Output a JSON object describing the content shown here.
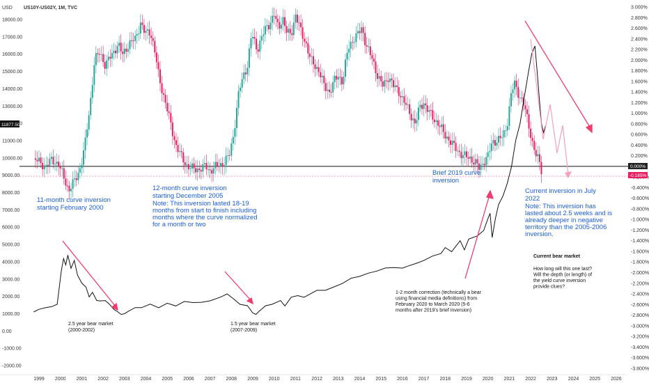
{
  "colors": {
    "up": "#26a69a",
    "down": "#e91e63",
    "price_line": "#111111",
    "annotation_blue": "#1a5fd6",
    "arrow": "#f23a6e",
    "projection": "#f7a1b8",
    "axis_text": "#333333"
  },
  "header": {
    "currency": "USD",
    "symbol": "US10Y-US02Y, 1M, TVC"
  },
  "chart_data": {
    "type": "line",
    "x_ticks": [
      "1999",
      "2000",
      "2001",
      "2002",
      "2003",
      "2004",
      "2005",
      "2006",
      "2007",
      "2008",
      "2009",
      "2010",
      "2011",
      "2012",
      "2013",
      "2014",
      "2015",
      "2016",
      "2017",
      "2018",
      "2019",
      "2020",
      "2021",
      "2022",
      "2023",
      "2024",
      "2025",
      "2026"
    ],
    "left_axis": {
      "label": "USD",
      "ticks": [
        "18000.00",
        "17000.00",
        "16000.00",
        "15000.00",
        "14000.00",
        "13000.00",
        "12000.00",
        "11000.00",
        "10000.00",
        "9000.00",
        "8000.00",
        "7000.00",
        "6000.00",
        "5000.00",
        "4000.00",
        "3000.00",
        "2000.00",
        "1000.00",
        "0.00",
        "-1000.00",
        "-2000.00"
      ]
    },
    "right_axis": {
      "ticks": [
        "3.000%",
        "2.800%",
        "2.600%",
        "2.400%",
        "2.200%",
        "2.000%",
        "1.800%",
        "1.600%",
        "1.400%",
        "1.200%",
        "1.000%",
        "0.800%",
        "0.600%",
        "0.400%",
        "0.200%",
        "0.000%",
        "-0.200%",
        "-0.400%",
        "-0.600%",
        "-0.800%",
        "-1.000%",
        "-1.200%",
        "-1.400%",
        "-1.600%",
        "-1.800%",
        "-2.000%",
        "-2.200%",
        "-2.400%",
        "-2.600%",
        "-2.800%",
        "-3.000%",
        "-3.200%",
        "-3.400%",
        "-3.600%",
        "-3.800%"
      ]
    },
    "price_badge": "11877.50",
    "zero_badge": "0.000%",
    "current_badge": "-0.185%",
    "series": [
      {
        "kind": "yield_curve_spread_candles",
        "close_points": [
          [
            1998.75,
            0.15
          ],
          [
            1999.0,
            0.08
          ],
          [
            1999.3,
            0.0
          ],
          [
            1999.6,
            0.12
          ],
          [
            1999.9,
            0.05
          ],
          [
            2000.1,
            -0.15
          ],
          [
            2000.4,
            -0.45
          ],
          [
            2000.7,
            -0.25
          ],
          [
            2000.95,
            0.0
          ],
          [
            2001.15,
            0.4
          ],
          [
            2001.4,
            1.2
          ],
          [
            2001.6,
            2.0
          ],
          [
            2001.85,
            2.15
          ],
          [
            2002.1,
            1.9
          ],
          [
            2002.4,
            2.1
          ],
          [
            2002.7,
            2.3
          ],
          [
            2002.9,
            2.1
          ],
          [
            2003.2,
            2.3
          ],
          [
            2003.5,
            2.4
          ],
          [
            2003.75,
            2.7
          ],
          [
            2003.95,
            2.5
          ],
          [
            2004.2,
            2.55
          ],
          [
            2004.4,
            2.2
          ],
          [
            2004.6,
            1.7
          ],
          [
            2004.85,
            1.3
          ],
          [
            2005.1,
            0.9
          ],
          [
            2005.4,
            0.4
          ],
          [
            2005.7,
            0.15
          ],
          [
            2005.95,
            0.0
          ],
          [
            2006.2,
            -0.05
          ],
          [
            2006.5,
            -0.05
          ],
          [
            2006.8,
            0.0
          ],
          [
            2007.0,
            -0.08
          ],
          [
            2007.3,
            0.0
          ],
          [
            2007.6,
            0.05
          ],
          [
            2007.9,
            0.2
          ],
          [
            2008.1,
            0.6
          ],
          [
            2008.35,
            1.4
          ],
          [
            2008.55,
            1.7
          ],
          [
            2008.75,
            1.9
          ],
          [
            2008.95,
            2.5
          ],
          [
            2009.2,
            2.2
          ],
          [
            2009.4,
            2.4
          ],
          [
            2009.6,
            2.6
          ],
          [
            2009.8,
            2.7
          ],
          [
            2010.0,
            2.85
          ],
          [
            2010.2,
            2.6
          ],
          [
            2010.4,
            2.8
          ],
          [
            2010.6,
            2.5
          ],
          [
            2010.8,
            2.5
          ],
          [
            2011.0,
            2.85
          ],
          [
            2011.2,
            2.6
          ],
          [
            2011.5,
            2.3
          ],
          [
            2011.7,
            2.0
          ],
          [
            2011.9,
            1.9
          ],
          [
            2012.1,
            1.8
          ],
          [
            2012.35,
            1.5
          ],
          [
            2012.6,
            1.4
          ],
          [
            2012.8,
            1.6
          ],
          [
            2013.0,
            1.7
          ],
          [
            2013.2,
            1.6
          ],
          [
            2013.45,
            2.2
          ],
          [
            2013.7,
            2.4
          ],
          [
            2013.95,
            2.5
          ],
          [
            2014.1,
            2.6
          ],
          [
            2014.3,
            2.3
          ],
          [
            2014.6,
            2.0
          ],
          [
            2014.85,
            1.7
          ],
          [
            2015.1,
            1.5
          ],
          [
            2015.35,
            1.7
          ],
          [
            2015.6,
            1.5
          ],
          [
            2015.85,
            1.4
          ],
          [
            2016.1,
            1.2
          ],
          [
            2016.35,
            1.0
          ],
          [
            2016.6,
            0.8
          ],
          [
            2016.8,
            1.1
          ],
          [
            2017.0,
            1.2
          ],
          [
            2017.2,
            1.05
          ],
          [
            2017.45,
            0.9
          ],
          [
            2017.7,
            0.8
          ],
          [
            2017.95,
            0.6
          ],
          [
            2018.2,
            0.5
          ],
          [
            2018.45,
            0.35
          ],
          [
            2018.7,
            0.25
          ],
          [
            2018.95,
            0.18
          ],
          [
            2019.2,
            0.15
          ],
          [
            2019.45,
            0.05
          ],
          [
            2019.6,
            -0.05
          ],
          [
            2019.8,
            0.1
          ],
          [
            2020.0,
            0.2
          ],
          [
            2020.2,
            0.45
          ],
          [
            2020.45,
            0.5
          ],
          [
            2020.7,
            0.55
          ],
          [
            2020.9,
            0.8
          ],
          [
            2021.1,
            1.4
          ],
          [
            2021.25,
            1.55
          ],
          [
            2021.45,
            1.35
          ],
          [
            2021.65,
            1.2
          ],
          [
            2021.9,
            0.8
          ],
          [
            2022.05,
            0.5
          ],
          [
            2022.25,
            0.2
          ],
          [
            2022.45,
            0.05
          ],
          [
            2022.55,
            -0.185
          ]
        ]
      },
      {
        "kind": "sp500_price_line",
        "points": [
          [
            1998.75,
            1100
          ],
          [
            1999.0,
            1250
          ],
          [
            1999.3,
            1350
          ],
          [
            1999.6,
            1400
          ],
          [
            1999.85,
            1550
          ],
          [
            2000.05,
            3500
          ],
          [
            2000.15,
            4200
          ],
          [
            2000.25,
            3800
          ],
          [
            2000.35,
            4400
          ],
          [
            2000.5,
            3600
          ],
          [
            2000.65,
            4100
          ],
          [
            2000.8,
            3200
          ],
          [
            2001.0,
            2800
          ],
          [
            2001.2,
            2500
          ],
          [
            2001.35,
            2000
          ],
          [
            2001.5,
            2200
          ],
          [
            2001.7,
            1800
          ],
          [
            2001.85,
            1700
          ],
          [
            2002.1,
            1800
          ],
          [
            2002.3,
            1500
          ],
          [
            2002.5,
            1300
          ],
          [
            2002.7,
            1050
          ],
          [
            2002.85,
            1000
          ],
          [
            2003.0,
            950
          ],
          [
            2003.2,
            1200
          ],
          [
            2003.5,
            1300
          ],
          [
            2003.8,
            1400
          ],
          [
            2004.2,
            1500
          ],
          [
            2004.6,
            1400
          ],
          [
            2005.0,
            1550
          ],
          [
            2005.4,
            1500
          ],
          [
            2005.8,
            1650
          ],
          [
            2006.2,
            1700
          ],
          [
            2006.6,
            1600
          ],
          [
            2007.0,
            1800
          ],
          [
            2007.5,
            1900
          ],
          [
            2007.8,
            2200
          ],
          [
            2008.1,
            1800
          ],
          [
            2008.4,
            1600
          ],
          [
            2008.75,
            1400
          ],
          [
            2009.0,
            1100
          ],
          [
            2009.15,
            900
          ],
          [
            2009.3,
            1200
          ],
          [
            2009.6,
            1400
          ],
          [
            2009.9,
            1600
          ],
          [
            2010.3,
            1700
          ],
          [
            2010.5,
            1500
          ],
          [
            2010.8,
            1900
          ],
          [
            2011.1,
            2100
          ],
          [
            2011.4,
            1900
          ],
          [
            2011.7,
            2200
          ],
          [
            2012.0,
            2300
          ],
          [
            2012.4,
            2400
          ],
          [
            2012.8,
            2500
          ],
          [
            2013.2,
            2800
          ],
          [
            2013.6,
            3000
          ],
          [
            2014.0,
            3200
          ],
          [
            2014.4,
            3300
          ],
          [
            2014.8,
            3500
          ],
          [
            2015.2,
            3600
          ],
          [
            2015.6,
            3700
          ],
          [
            2016.0,
            3600
          ],
          [
            2016.3,
            3800
          ],
          [
            2016.7,
            3900
          ],
          [
            2017.0,
            4100
          ],
          [
            2017.4,
            4300
          ],
          [
            2017.8,
            4500
          ],
          [
            2018.0,
            4800
          ],
          [
            2018.3,
            4600
          ],
          [
            2018.7,
            5200
          ],
          [
            2018.9,
            4700
          ],
          [
            2019.1,
            5300
          ],
          [
            2019.5,
            5500
          ],
          [
            2019.8,
            5800
          ],
          [
            2020.0,
            6500
          ],
          [
            2020.1,
            6800
          ],
          [
            2020.2,
            5400
          ],
          [
            2020.35,
            6500
          ],
          [
            2020.5,
            7300
          ],
          [
            2020.7,
            7800
          ],
          [
            2020.9,
            8500
          ],
          [
            2021.1,
            9500
          ],
          [
            2021.3,
            11000
          ],
          [
            2021.5,
            12000
          ],
          [
            2021.7,
            13500
          ],
          [
            2021.9,
            15000
          ],
          [
            2022.05,
            16000
          ],
          [
            2022.2,
            16500
          ],
          [
            2022.3,
            15000
          ],
          [
            2022.4,
            13500
          ],
          [
            2022.5,
            12000
          ],
          [
            2022.6,
            11500
          ],
          [
            2022.7,
            11877.5
          ]
        ]
      }
    ],
    "annotations": {
      "inv2000": [
        "11-month curve inversion",
        "starting February 2000"
      ],
      "inv2005": [
        "12-month curve inversion",
        "starting December 2005",
        "",
        "Note: This inversion lasted 18-19",
        "months from start to finish including",
        "months where the curve normalized",
        "for a month or two"
      ],
      "inv2019": [
        "Brief 2019 curve",
        "inversion"
      ],
      "inv2022": [
        "Current inversion in July",
        "2022",
        "",
        "Note: This inversion has",
        "lasted about 2.5 weeks and is",
        "already deeper in negative",
        "territory than the 2005-2006",
        "inversion."
      ],
      "bear2000": [
        "2.5 year bear market",
        "(2000-2002)"
      ],
      "bear2007": [
        "1.5 year bear market",
        "(2007-2009)"
      ],
      "correction2020": [
        "1-2 month correction (technically a bear",
        "using financial media definitions) from",
        "February 2020 to March 2020 (5-6",
        "months after 2019's brief inversion)"
      ],
      "current_bear_title": "Current bear market",
      "current_bear_question": [
        "How long will this one last?",
        "Will the depth (or length) of",
        "the yield curve inversion",
        "provide clues?"
      ]
    }
  }
}
